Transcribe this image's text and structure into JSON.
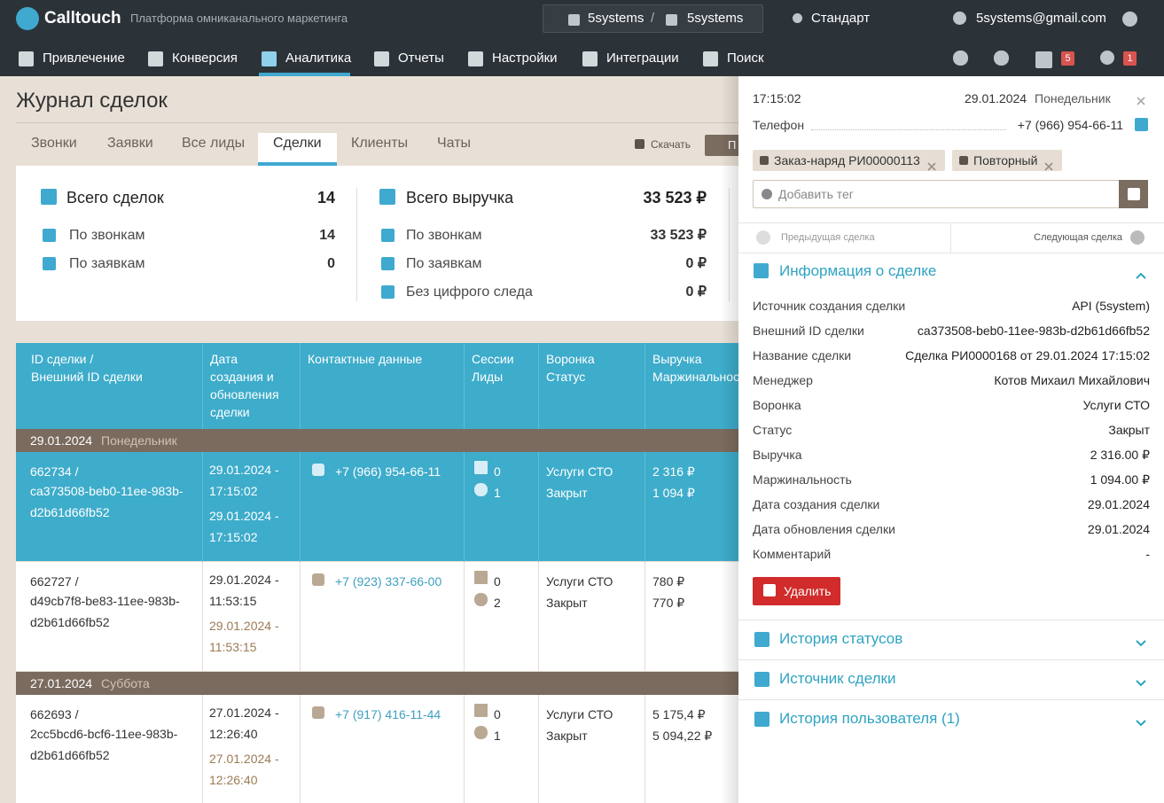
{
  "header": {
    "brand": "Calltouch",
    "tagline": "Платформа омниканального маркетинга",
    "account": "5systems",
    "account_separator": "/",
    "project": "5systems",
    "plan": "Стандарт",
    "user": "5systems@gmail.com"
  },
  "nav": {
    "items": [
      "Привлечение",
      "Конверсия",
      "Аналитика",
      "Отчеты",
      "Настройки",
      "Интеграции",
      "Поиск"
    ],
    "active": 2,
    "badges": [
      "5",
      "1"
    ]
  },
  "page": {
    "title": "Журнал сделок",
    "tabs": [
      "Звонки",
      "Заявки",
      "Все лиды",
      "Сделки",
      "Клиенты",
      "Чаты"
    ],
    "active_tab": 3,
    "download": "Скачать",
    "cut_button": "П"
  },
  "summary": {
    "deals": {
      "title": "Всего сделок",
      "total": "14",
      "rows": [
        [
          "По звонкам",
          "14"
        ],
        [
          "По заявкам",
          "0"
        ]
      ]
    },
    "revenue": {
      "title": "Всего выручка",
      "total": "33 523 ₽",
      "rows": [
        [
          "По звонкам",
          "33 523 ₽"
        ],
        [
          "По заявкам",
          "0 ₽"
        ],
        [
          "Без цифрого следа",
          "0 ₽"
        ]
      ]
    }
  },
  "table": {
    "headers": [
      [
        "ID сделки /",
        "Внешний ID сделки"
      ],
      [
        "Дата создания и обновления сделки"
      ],
      [
        "Контактные данные"
      ],
      [
        "Сессии",
        "Лиды"
      ],
      [
        "Воронка",
        "Статус"
      ],
      [
        "Выручка",
        "Маржинальность"
      ]
    ],
    "groups": [
      {
        "date": "29.01.2024",
        "weekday": "Понедельник",
        "rows": [
          {
            "id": "662734 /",
            "ext": "ca373508-beb0-11ee-983b-d2b61d66fb52",
            "created": "29.01.2024 - 17:15:02",
            "updated": "29.01.2024 - 17:15:02",
            "phone": "+7 (966) 954-66-11",
            "sessions": "0",
            "leads": "1",
            "funnel": "Услуги СТО",
            "status": "Закрыт",
            "revenue": "2 316 ₽",
            "margin": "1 094 ₽",
            "selected": true
          },
          {
            "id": "662727 /",
            "ext": "d49cb7f8-be83-11ee-983b-d2b61d66fb52",
            "created": "29.01.2024 - 11:53:15",
            "updated": "29.01.2024 - 11:53:15",
            "phone": "+7 (923) 337-66-00",
            "sessions": "0",
            "leads": "2",
            "funnel": "Услуги СТО",
            "status": "Закрыт",
            "revenue": "780 ₽",
            "margin": "770 ₽",
            "selected": false
          }
        ]
      },
      {
        "date": "27.01.2024",
        "weekday": "Суббота",
        "rows": [
          {
            "id": "662693 /",
            "ext": "2cc5bcd6-bcf6-11ee-983b-d2b61d66fb52",
            "created": "27.01.2024 - 12:26:40",
            "updated": "27.01.2024 - 12:26:40",
            "phone": "+7 (917) 416-11-44",
            "sessions": "0",
            "leads": "1",
            "funnel": "Услуги СТО",
            "status": "Закрыт",
            "revenue": "5 175,4 ₽",
            "margin": "5 094,22 ₽",
            "selected": false
          }
        ]
      }
    ]
  },
  "panel": {
    "time": "17:15:02",
    "date": "29.01.2024",
    "weekday": "Понедельник",
    "phone_label": "Телефон",
    "phone": "+7 (966) 954-66-11",
    "tags": [
      "Заказ-наряд РИ00000113",
      "Повторный"
    ],
    "tag_placeholder": "Добавить тег",
    "prev": "Предыдущая сделка",
    "next": "Следующая сделка",
    "info_title": "Информация о сделке",
    "fields": [
      [
        "Источник создания сделки",
        "API (5system)"
      ],
      [
        "Внешний ID сделки",
        "ca373508-beb0-11ee-983b-d2b61d66fb52"
      ],
      [
        "Название сделки",
        "Сделка РИ0000168 от 29.01.2024 17:15:02"
      ],
      [
        "Менеджер",
        "Котов Михаил Михайлович"
      ],
      [
        "Воронка",
        "Услуги СТО"
      ],
      [
        "Статус",
        "Закрыт"
      ],
      [
        "Выручка",
        "2 316.00 ₽"
      ],
      [
        "Маржинальность",
        "1 094.00 ₽"
      ],
      [
        "Дата создания сделки",
        "29.01.2024"
      ],
      [
        "Дата обновления сделки",
        "29.01.2024"
      ],
      [
        "Комментарий",
        "-"
      ]
    ],
    "delete": "Удалить",
    "sections": [
      "История статусов",
      "Источник сделки",
      "История пользователя (1)"
    ]
  }
}
